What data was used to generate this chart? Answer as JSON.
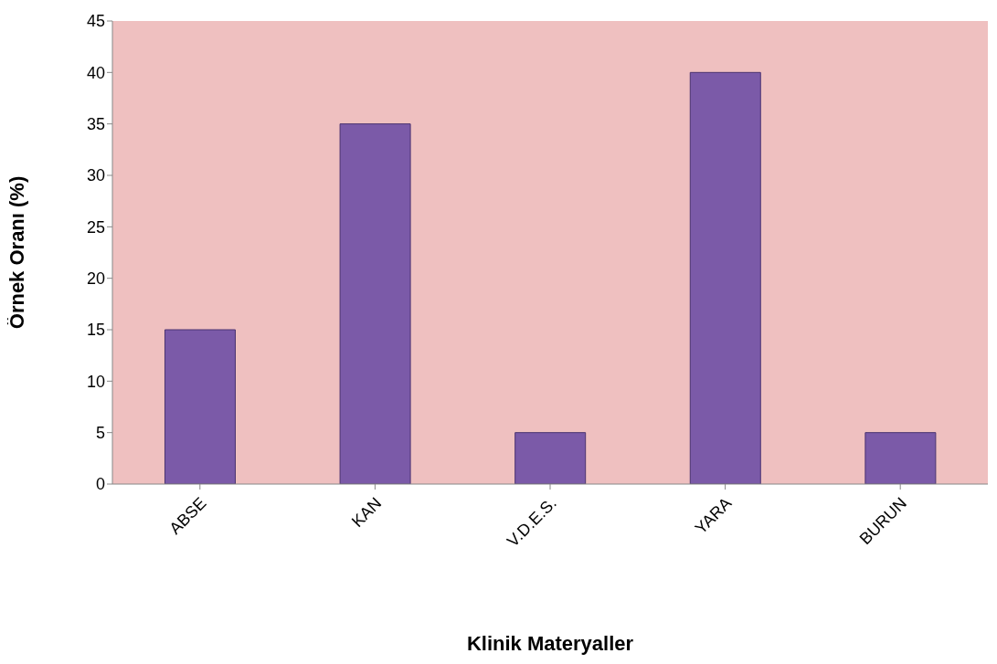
{
  "chart_data": {
    "type": "bar",
    "xlabel": "Klinik Materyaller",
    "ylabel": "Örnek Oranı (%)",
    "categories": [
      "ABSE",
      "KAN",
      "V.D.E.S.",
      "YARA",
      "BURUN"
    ],
    "values": [
      15,
      35,
      5,
      40,
      5
    ],
    "color": "#7b5aa8",
    "ylim": [
      0,
      45
    ],
    "yticks": [
      0,
      5,
      10,
      15,
      20,
      25,
      30,
      35,
      40,
      45
    ],
    "grid": false,
    "legend": false
  }
}
